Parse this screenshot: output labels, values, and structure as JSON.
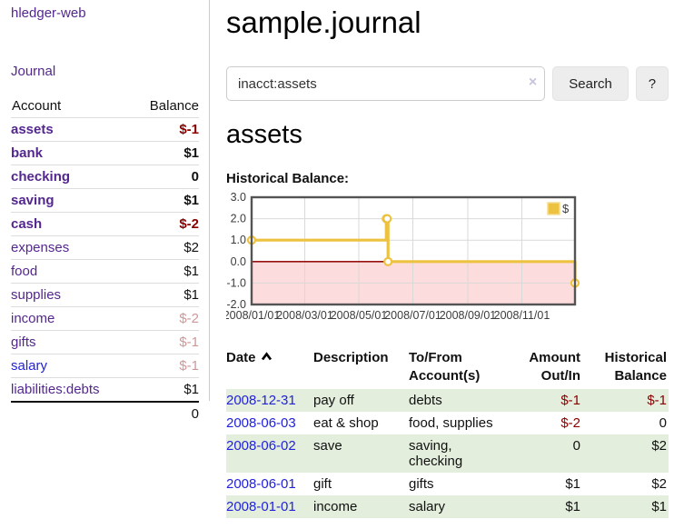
{
  "sidebar": {
    "brand": "hledger-web",
    "journal_label": "Journal",
    "columns": {
      "account": "Account",
      "balance": "Balance"
    },
    "accounts": [
      {
        "name": "assets",
        "depth": 1,
        "bold": true,
        "link": "purple",
        "balance": "$-1",
        "balance_class": "neg-strong"
      },
      {
        "name": "bank",
        "depth": 2,
        "bold": true,
        "link": "purple",
        "balance": "$1",
        "balance_class": "pos-strong"
      },
      {
        "name": "checking",
        "depth": 3,
        "bold": true,
        "link": "purple",
        "balance": "0",
        "balance_class": "pos-strong"
      },
      {
        "name": "saving",
        "depth": 3,
        "bold": true,
        "link": "purple",
        "balance": "$1",
        "balance_class": "pos-strong"
      },
      {
        "name": "cash",
        "depth": 2,
        "bold": true,
        "link": "purple",
        "balance": "$-2",
        "balance_class": "neg-strong"
      },
      {
        "name": "expenses",
        "depth": 1,
        "bold": false,
        "link": "purple",
        "balance": "$2",
        "balance_class": "pos"
      },
      {
        "name": "food",
        "depth": 2,
        "bold": false,
        "link": "purple",
        "balance": "$1",
        "balance_class": "pos"
      },
      {
        "name": "supplies",
        "depth": 2,
        "bold": false,
        "link": "purple",
        "balance": "$1",
        "balance_class": "pos"
      },
      {
        "name": "income",
        "depth": 1,
        "bold": false,
        "link": "purple",
        "balance": "$-2",
        "balance_class": "neg-faded"
      },
      {
        "name": "gifts",
        "depth": 2,
        "bold": false,
        "link": "purple",
        "balance": "$-1",
        "balance_class": "neg-faded"
      },
      {
        "name": "salary",
        "depth": 2,
        "bold": false,
        "link": "blue",
        "balance": "$-1",
        "balance_class": "neg-faded"
      },
      {
        "name": "liabilities:debts",
        "depth": 1,
        "bold": false,
        "link": "purple",
        "balance": "$1",
        "balance_class": "pos"
      }
    ],
    "total": "0"
  },
  "header": {
    "title": "sample.journal"
  },
  "search": {
    "value": "inacct:assets",
    "clear_icon": "×",
    "button_label": "Search",
    "help_label": "?"
  },
  "account_page": {
    "heading": "assets",
    "chart_label": "Historical Balance:"
  },
  "chart_data": {
    "type": "line",
    "title": "Historical Balance",
    "line_style": "step-after",
    "series": [
      {
        "name": "$",
        "color": "#edc240",
        "points": [
          {
            "x": "2008-01-01",
            "y": 1
          },
          {
            "x": "2008-06-01",
            "y": 2
          },
          {
            "x": "2008-06-02",
            "y": 2
          },
          {
            "x": "2008-06-03",
            "y": 0
          },
          {
            "x": "2008-12-31",
            "y": -1
          }
        ]
      }
    ],
    "xrange": [
      "2008-01-01",
      "2008-12-31"
    ],
    "ylim": [
      -2,
      3
    ],
    "y_ticks": [
      "3.0",
      "2.0",
      "1.0",
      "0.0",
      "-1.0",
      "-2.0"
    ],
    "x_ticks": [
      "2008/01/01",
      "2008/03/01",
      "2008/05/01",
      "2008/07/01",
      "2008/09/01",
      "2008/11/01"
    ],
    "grid": true,
    "zero_line_color": "#991111",
    "negative_zone_fill": "#fcdcdc",
    "legend": {
      "label": "$",
      "position": "top-right"
    }
  },
  "register": {
    "headers": {
      "date": "Date",
      "description": "Description",
      "account_line1": "To/From",
      "account_line2": "Account(s)",
      "amount_line1": "Amount",
      "amount_line2": "Out/In",
      "balance_line1": "Historical",
      "balance_line2": "Balance"
    },
    "rows": [
      {
        "date": "2008-12-31",
        "description": "pay off",
        "accounts": "debts",
        "amount": "$-1",
        "amount_class": "neg",
        "balance": "$-1",
        "balance_class": "neg",
        "shade": "green"
      },
      {
        "date": "2008-06-03",
        "description": "eat & shop",
        "accounts": "food, supplies",
        "amount": "$-2",
        "amount_class": "neg",
        "balance": "0",
        "balance_class": "pos",
        "shade": "white"
      },
      {
        "date": "2008-06-02",
        "description": "save",
        "accounts": "saving,\nchecking",
        "amount": "0",
        "amount_class": "pos",
        "balance": "$2",
        "balance_class": "pos",
        "shade": "green"
      },
      {
        "date": "2008-06-01",
        "description": "gift",
        "accounts": "gifts",
        "amount": "$1",
        "amount_class": "pos",
        "balance": "$2",
        "balance_class": "pos",
        "shade": "white"
      },
      {
        "date": "2008-01-01",
        "description": "income",
        "accounts": "salary",
        "amount": "$1",
        "amount_class": "pos",
        "balance": "$1",
        "balance_class": "pos",
        "shade": "green"
      }
    ]
  }
}
